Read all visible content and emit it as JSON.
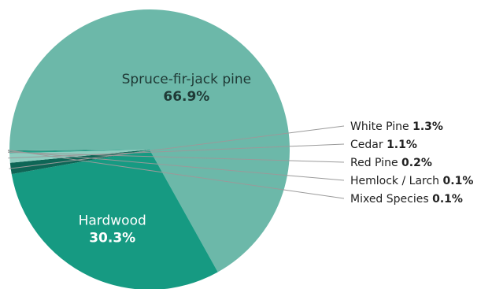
{
  "chart_data": {
    "type": "pie",
    "title": "",
    "start_angle_deg": 180,
    "direction": "clockwise",
    "slices": [
      {
        "label": "Spruce-fir-jack pine",
        "value": 66.9,
        "value_label": "66.9%",
        "color": "#6cb8a9",
        "label_style": "inside-dark"
      },
      {
        "label": "Hardwood",
        "value": 30.3,
        "value_label": "30.3%",
        "color": "#169a82",
        "label_style": "inside-light"
      },
      {
        "label": "White Pine",
        "value": 1.3,
        "value_label": "1.3%",
        "color": "#0e6656",
        "label_style": "callout"
      },
      {
        "label": "Cedar",
        "value": 1.1,
        "value_label": "1.1%",
        "color": "#8fcdc0",
        "label_style": "callout"
      },
      {
        "label": "Red Pine",
        "value": 0.2,
        "value_label": "0.2%",
        "color": "#1fa088",
        "label_style": "callout"
      },
      {
        "label": "Hemlock / Larch",
        "value": 0.1,
        "value_label": "0.1%",
        "color": "#2c8a78",
        "label_style": "callout"
      },
      {
        "label": "Mixed Species",
        "value": 0.1,
        "value_label": "0.1%",
        "color": "#6cb8a9",
        "label_style": "callout"
      }
    ]
  }
}
